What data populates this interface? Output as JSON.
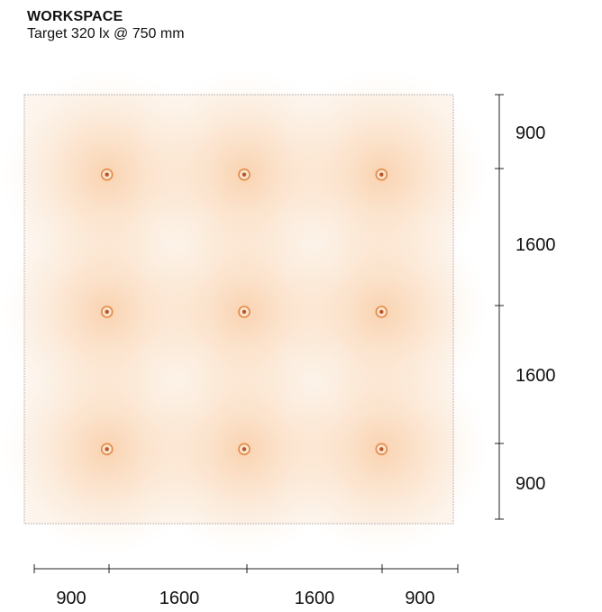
{
  "header": {
    "title": "WORKSPACE",
    "subtitle": "Target 320 lx @ 750 mm"
  },
  "grid": {
    "columns_mm": [
      900,
      1600,
      1600,
      900
    ],
    "rows_mm": [
      900,
      1600,
      1600,
      900
    ],
    "fixture_rows": 3,
    "fixture_cols": 3
  },
  "dimensions": {
    "horizontal": [
      "900",
      "1600",
      "1600",
      "900"
    ],
    "vertical": [
      "900",
      "1600",
      "1600",
      "900"
    ]
  },
  "colors": {
    "glow": "#f5a25a",
    "fixture_ring": "#e28b48",
    "fixture_dot": "#b8552a",
    "room_fill": "#fdf6ef",
    "room_border": "#b9b9b9"
  }
}
